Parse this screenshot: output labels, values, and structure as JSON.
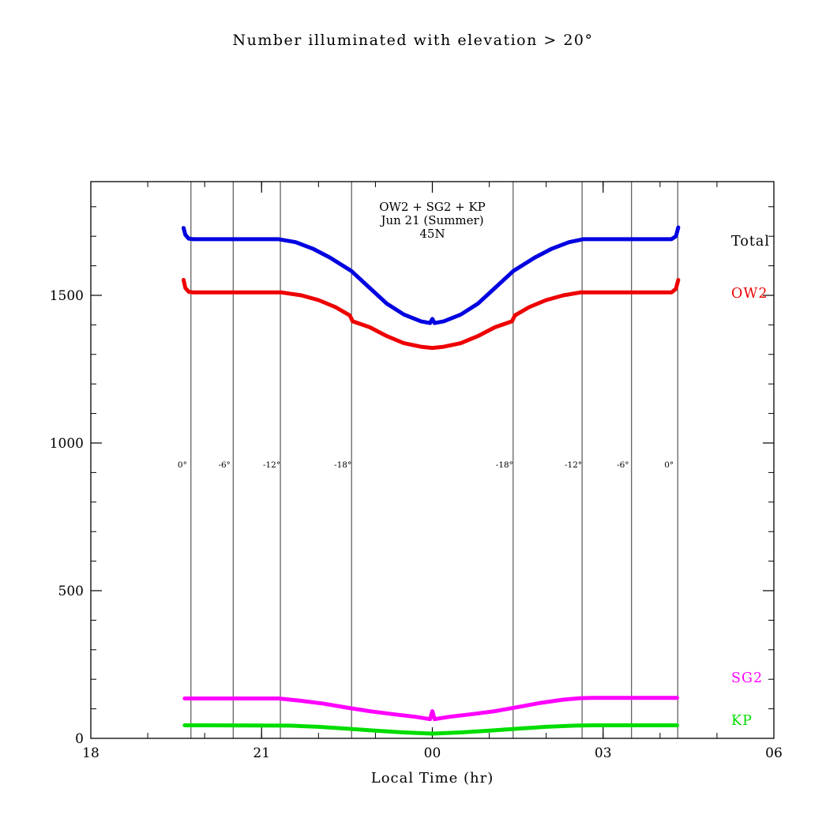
{
  "page": {
    "background": "#ffffff",
    "frame_color": "#000000"
  },
  "chart_data": {
    "type": "line",
    "title": "Number illuminated with elevation > 20°",
    "xlabel": "Local Time (hr)",
    "ylabel": "",
    "xlim": [
      18,
      30
    ],
    "ylim": [
      0,
      1885
    ],
    "grid": false,
    "legend_position": "right-outside",
    "x_ticks": [
      {
        "value": 18,
        "label": "18"
      },
      {
        "value": 21,
        "label": "21"
      },
      {
        "value": 24,
        "label": "00"
      },
      {
        "value": 27,
        "label": "03"
      },
      {
        "value": 30,
        "label": "06"
      }
    ],
    "y_ticks": [
      {
        "value": 0,
        "label": "0"
      },
      {
        "value": 500,
        "label": "500"
      },
      {
        "value": 1000,
        "label": "1000"
      },
      {
        "value": 1500,
        "label": "1500"
      }
    ],
    "x_minor_step": 1,
    "y_minor_step": 100,
    "annotations": {
      "line1": "OW2 + SG2 + KP",
      "line2": "Jun 21 (Summer)",
      "line3": "45N",
      "x_center": 24,
      "color": "#000000"
    },
    "sun_elevation_lines": [
      {
        "x": 19.76,
        "label": "0°"
      },
      {
        "x": 20.5,
        "label": "-6°"
      },
      {
        "x": 21.33,
        "label": "-12°"
      },
      {
        "x": 22.58,
        "label": "-18°"
      },
      {
        "x": 25.42,
        "label": "-18°"
      },
      {
        "x": 26.63,
        "label": "-12°"
      },
      {
        "x": 27.5,
        "label": "-6°"
      },
      {
        "x": 28.31,
        "label": "0°"
      }
    ],
    "elevation_label_y": 928,
    "series": [
      {
        "name": "Total",
        "color": "#0000e0",
        "x": [
          19.63,
          19.66,
          19.72,
          19.8,
          21.3,
          21.6,
          21.9,
          22.2,
          22.58,
          22.9,
          23.2,
          23.5,
          23.8,
          23.96,
          24.0,
          24.04,
          24.2,
          24.5,
          24.8,
          25.1,
          25.42,
          25.8,
          26.1,
          26.4,
          26.65,
          26.8,
          28.2,
          28.28,
          28.32
        ],
        "values": [
          1728,
          1705,
          1692,
          1690,
          1690,
          1680,
          1658,
          1628,
          1582,
          1525,
          1472,
          1435,
          1412,
          1406,
          1420,
          1406,
          1412,
          1435,
          1472,
          1525,
          1582,
          1628,
          1658,
          1680,
          1690,
          1690,
          1690,
          1700,
          1730
        ]
      },
      {
        "name": "OW2",
        "color": "#ee0000",
        "x": [
          19.63,
          19.66,
          19.72,
          19.8,
          21.35,
          21.7,
          22.0,
          22.3,
          22.55,
          22.6,
          22.9,
          23.2,
          23.5,
          23.8,
          24.0,
          24.2,
          24.5,
          24.8,
          25.1,
          25.4,
          25.45,
          25.7,
          26.0,
          26.3,
          26.6,
          26.75,
          28.2,
          28.28,
          28.32
        ],
        "values": [
          1552,
          1525,
          1512,
          1510,
          1510,
          1500,
          1484,
          1460,
          1432,
          1412,
          1392,
          1362,
          1338,
          1326,
          1322,
          1326,
          1338,
          1362,
          1392,
          1412,
          1432,
          1460,
          1484,
          1500,
          1510,
          1510,
          1510,
          1522,
          1552
        ]
      },
      {
        "name": "SG2",
        "color": "#ff00ff",
        "x": [
          19.65,
          19.8,
          21.3,
          21.7,
          22.1,
          22.5,
          22.9,
          23.3,
          23.7,
          23.96,
          24.0,
          24.04,
          24.3,
          24.7,
          25.1,
          25.5,
          25.9,
          26.3,
          26.6,
          26.8,
          28.3
        ],
        "values": [
          135,
          135,
          135,
          127,
          117,
          104,
          92,
          82,
          73,
          65,
          92,
          65,
          73,
          82,
          92,
          106,
          120,
          131,
          136,
          137,
          137
        ]
      },
      {
        "name": "KP",
        "color": "#00dd00",
        "x": [
          19.65,
          20.0,
          21.5,
          22.0,
          22.5,
          23.0,
          23.5,
          24.0,
          24.5,
          25.0,
          25.5,
          26.0,
          26.5,
          26.8,
          28.3
        ],
        "values": [
          44,
          44,
          43,
          39,
          33,
          26,
          20,
          16,
          20,
          26,
          33,
          39,
          43,
          44,
          44
        ]
      }
    ],
    "legend": [
      {
        "label": "Total",
        "color": "#000000",
        "y_value": 1685
      },
      {
        "label": "OW2",
        "color": "#ee0000",
        "y_value": 1508
      },
      {
        "label": "SG2",
        "color": "#ff00ff",
        "y_value": 206
      },
      {
        "label": "KP",
        "color": "#00dd00",
        "y_value": 62
      }
    ]
  }
}
